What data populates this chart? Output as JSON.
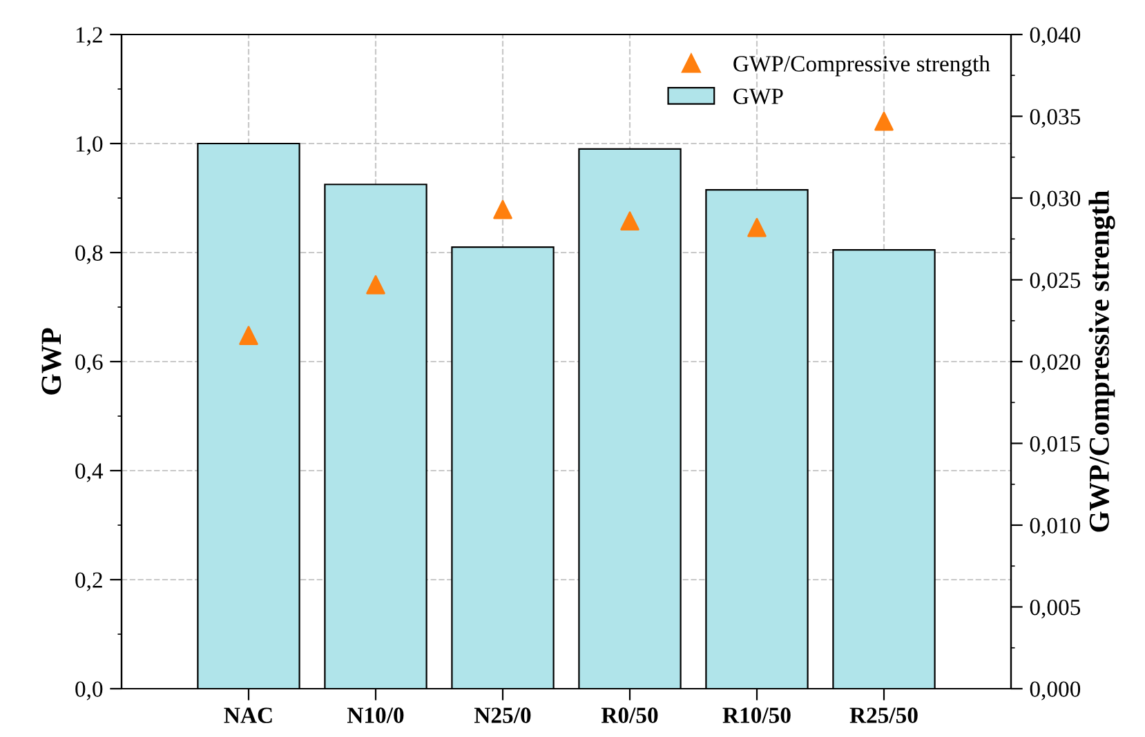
{
  "chart_data": {
    "type": "bar",
    "categories": [
      "NAC",
      "N10/0",
      "N25/0",
      "R0/50",
      "R10/50",
      "R25/50"
    ],
    "ylabel": "GWP",
    "y2label": "GWP/Compressive strength",
    "series": [
      {
        "name": "GWP",
        "color": "#b0e4ea",
        "values": [
          1.0,
          0.925,
          0.81,
          0.99,
          0.915,
          0.805
        ]
      },
      {
        "name": "GWP/Compressive strength",
        "type": "scatter",
        "axis": "y2",
        "marker": "triangle",
        "color": "#ff7f0e",
        "values": [
          0.0216,
          0.0247,
          0.0293,
          0.0286,
          0.0282,
          0.0347
        ]
      }
    ],
    "ylim": [
      0,
      1.2
    ],
    "yticks": [
      {
        "value": 0,
        "label": "0,0"
      },
      {
        "value": 0.2,
        "label": "0,2"
      },
      {
        "value": 0.4,
        "label": "0,4"
      },
      {
        "value": 0.6,
        "label": "0,6"
      },
      {
        "value": 0.8,
        "label": "0,8"
      },
      {
        "value": 1.0,
        "label": "1,0"
      },
      {
        "value": 1.2,
        "label": "1,2"
      }
    ],
    "y2lim": [
      0,
      0.04
    ],
    "y2ticks": [
      {
        "value": 0,
        "label": "0,000"
      },
      {
        "value": 0.005,
        "label": "0,005"
      },
      {
        "value": 0.01,
        "label": "0,010"
      },
      {
        "value": 0.015,
        "label": "0,015"
      },
      {
        "value": 0.02,
        "label": "0,020"
      },
      {
        "value": 0.025,
        "label": "0,025"
      },
      {
        "value": 0.03,
        "label": "0,030"
      },
      {
        "value": 0.035,
        "label": "0,035"
      },
      {
        "value": 0.04,
        "label": "0,040"
      }
    ],
    "grid": true,
    "legend": "top right"
  }
}
